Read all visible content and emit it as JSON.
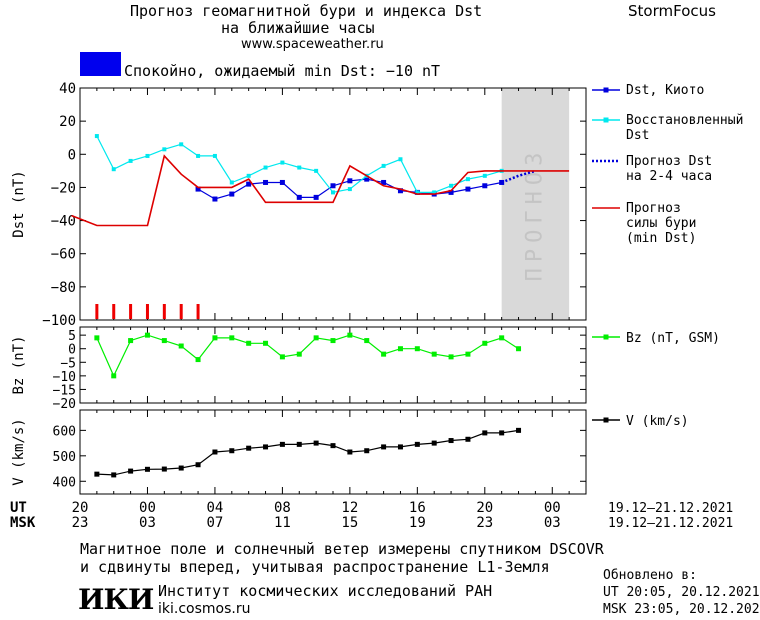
{
  "header": {
    "title_line1": "Прогноз геомагнитной бури и индекса Dst",
    "title_line2": "на ближайшие часы",
    "url": "www.spaceweather.ru",
    "brand": "StormFocus",
    "status": "Спокойно, ожидаемый min Dst: −10 nT",
    "status_color": "#0000ee"
  },
  "footer": {
    "line1": "Магнитное поле и солнечный ветер измерены спутником DSCOVR",
    "line2": "и сдвинуты вперед, учитывая распространение L1-Земля",
    "logo": "ИКИ",
    "institute": "Институт космических исследований РАН",
    "institute_url": "iki.cosmos.ru",
    "updated_label": "Обновлено в:",
    "updated_ut": "UT  20:05, 20.12.2021",
    "updated_msk": "MSK 23:05, 20.12.2021"
  },
  "chart_data": [
    {
      "type": "line",
      "ylabel": "Dst (nT)",
      "ylim": [
        -100,
        40
      ],
      "yticks": [
        "40",
        "20",
        "0",
        "−20",
        "−40",
        "−60",
        "−80",
        "−100"
      ],
      "ytick_values": [
        40,
        20,
        0,
        -20,
        -40,
        -60,
        -80,
        -100
      ],
      "xlim": [
        20,
        50
      ],
      "forecast_region": [
        45,
        49
      ],
      "forecast_label": "ПРОГНОЗ",
      "legend_position": "right",
      "series": [
        {
          "name": "Dst, Киото",
          "color": "#0000dd",
          "x": [
            27,
            28,
            29,
            30,
            31,
            32,
            33,
            34,
            35,
            36,
            37,
            38,
            39,
            40,
            41,
            42,
            43,
            44,
            45
          ],
          "y": [
            -21,
            -27,
            -24,
            -18,
            -17,
            -17,
            -26,
            -26,
            -19,
            -16,
            -15,
            -17,
            -22,
            -23,
            -24,
            -23,
            -21,
            -19,
            -17
          ]
        },
        {
          "name": "Восстановленный Dst",
          "color": "#00e8ee",
          "x": [
            21,
            22,
            23,
            24,
            25,
            26,
            27,
            28,
            29,
            30,
            31,
            32,
            33,
            34,
            35,
            36,
            37,
            38,
            39,
            40,
            41,
            42,
            43,
            44,
            45
          ],
          "y": [
            11,
            -9,
            -4,
            -1,
            3,
            6,
            -1,
            -1,
            -17,
            -13,
            -8,
            -5,
            -8,
            -10,
            -23,
            -21,
            -13,
            -7,
            -3,
            -23,
            -23,
            -19,
            -15,
            -13,
            -10
          ]
        },
        {
          "name": "Прогноз Dst на 2-4 часа",
          "color": "#0000dd",
          "x": [
            45,
            46,
            47
          ],
          "y": [
            -17,
            -13,
            -10
          ]
        },
        {
          "name": "Прогноз силы бури (min Dst)",
          "color": "#dd0000",
          "x": [
            19.5,
            21,
            22,
            23,
            24,
            25,
            26,
            27,
            28,
            29,
            30,
            31,
            32,
            33,
            34,
            35,
            36,
            37,
            38,
            39,
            40,
            41,
            42,
            43,
            44,
            45,
            46,
            47,
            48,
            49
          ],
          "y": [
            -37,
            -43,
            -43,
            -43,
            -43,
            -1,
            -12,
            -20,
            -20,
            -20,
            -15,
            -29,
            -29,
            -29,
            -29,
            -29,
            -7,
            -13,
            -19,
            -21,
            -24,
            -24,
            -22,
            -11,
            -10,
            -10,
            -10,
            -10,
            -10,
            -10
          ]
        }
      ],
      "storm_markers_x": [
        21,
        22,
        23,
        24,
        25,
        26,
        27
      ]
    },
    {
      "type": "line",
      "ylabel": "Bz (nT)",
      "ylim": [
        -20,
        8
      ],
      "yticks": [
        "5",
        "0",
        "−5",
        "−10",
        "−15",
        "−20"
      ],
      "ytick_values": [
        5,
        0,
        -5,
        -10,
        -15,
        -20
      ],
      "xlim": [
        20,
        50
      ],
      "series": [
        {
          "name": "Bz (nT, GSM)",
          "color": "#00ee00",
          "x": [
            21,
            22,
            23,
            24,
            25,
            26,
            27,
            28,
            29,
            30,
            31,
            32,
            33,
            34,
            35,
            36,
            37,
            38,
            39,
            40,
            41,
            42,
            43,
            44,
            45,
            46
          ],
          "y": [
            4,
            -10,
            3,
            5,
            3,
            1,
            -4,
            4,
            4,
            2,
            2,
            -3,
            -2,
            4,
            3,
            5,
            3,
            -2,
            0,
            0,
            -2,
            -3,
            -2,
            2,
            4,
            0
          ]
        }
      ]
    },
    {
      "type": "line",
      "ylabel": "V (km/s)",
      "ylim": [
        350,
        680
      ],
      "yticks": [
        "600",
        "500",
        "400"
      ],
      "ytick_values": [
        600,
        500,
        400
      ],
      "xlim": [
        20,
        50
      ],
      "series": [
        {
          "name": "V (km/s)",
          "color": "#000000",
          "x": [
            21,
            22,
            23,
            24,
            25,
            26,
            27,
            28,
            29,
            30,
            31,
            32,
            33,
            34,
            35,
            36,
            37,
            38,
            39,
            40,
            41,
            42,
            43,
            44,
            45,
            46
          ],
          "y": [
            428,
            425,
            440,
            447,
            448,
            452,
            465,
            515,
            520,
            530,
            535,
            545,
            545,
            550,
            540,
            515,
            520,
            535,
            535,
            545,
            550,
            560,
            565,
            590,
            590,
            600
          ]
        }
      ]
    }
  ],
  "time_axis": {
    "ut_label": "UT",
    "msk_label": "MSK",
    "ticks_x": [
      20,
      24,
      28,
      32,
      36,
      40,
      44,
      48
    ],
    "ut_ticks": [
      "20",
      "00",
      "04",
      "08",
      "12",
      "16",
      "20",
      "00"
    ],
    "msk_ticks": [
      "23",
      "03",
      "07",
      "11",
      "15",
      "19",
      "23",
      "03"
    ],
    "ut_range": "19.12–21.12.2021",
    "msk_range": "19.12–21.12.2021"
  }
}
